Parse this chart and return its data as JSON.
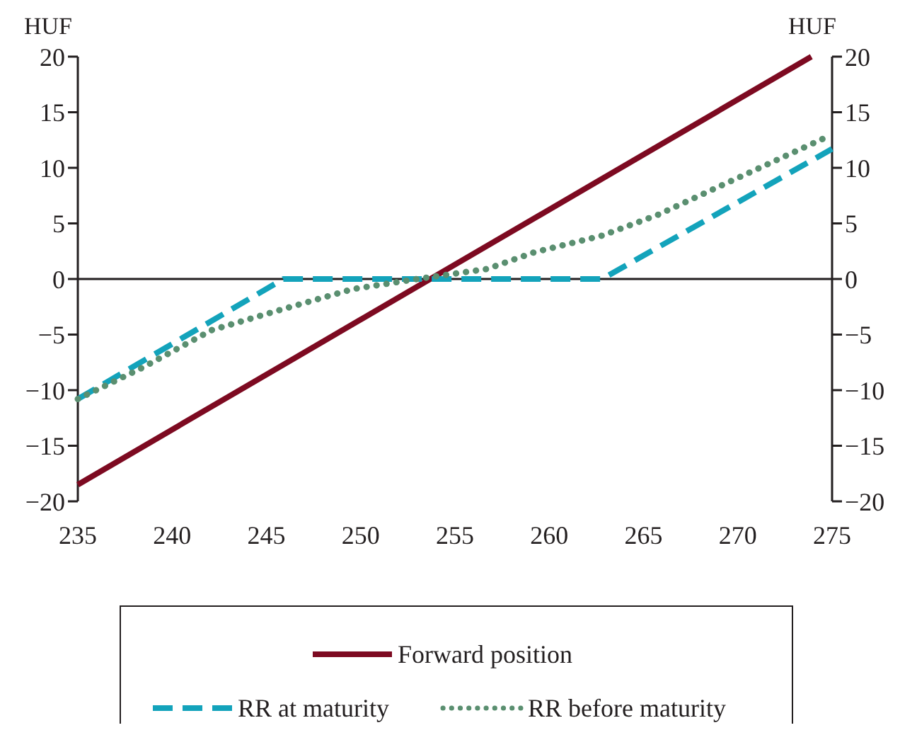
{
  "chart_data": {
    "type": "line",
    "ylabel": "HUF",
    "y2label": "HUF",
    "xlim": [
      235,
      275
    ],
    "xticks": [
      235,
      240,
      245,
      250,
      255,
      260,
      265,
      270,
      275
    ],
    "ylim": [
      -20,
      20
    ],
    "yticks": [
      {
        "value": -20,
        "label": "−20"
      },
      {
        "value": -15,
        "label": "−15"
      },
      {
        "value": -10,
        "label": "−10"
      },
      {
        "value": -5,
        "label": "−5"
      },
      0,
      5,
      10,
      15,
      20
    ],
    "y2lim": [
      -20,
      20
    ],
    "y2ticks": [
      {
        "value": -20,
        "label": "−20"
      },
      {
        "value": -15,
        "label": "−15"
      },
      {
        "value": -10,
        "label": "−10"
      },
      {
        "value": -5,
        "label": "−5"
      },
      0,
      5,
      10,
      15,
      20
    ],
    "ref_lines": [
      {
        "axis": "y",
        "value": 0,
        "color": "#231f20"
      }
    ],
    "legend": "bottom",
    "series": [
      {
        "name": "Forward position",
        "color": "#7d0a21",
        "line_style": "solid",
        "x": [
          235,
          273.9
        ],
        "values": [
          -18.5,
          20
        ]
      },
      {
        "name": "RR at maturity",
        "color": "#13a3bb",
        "line_style": "dashed",
        "x": [
          235,
          245.9,
          262.8,
          275
        ],
        "values": [
          -10.8,
          0,
          0,
          11.7
        ]
      },
      {
        "name": "RR before maturity",
        "color": "#5a8f70",
        "line_style": "dotted",
        "x": [
          235,
          238.4,
          242.1,
          245.9,
          249.6,
          253,
          256.7,
          259.2,
          262.8,
          265.8,
          269.5,
          274.5
        ],
        "values": [
          -10.8,
          -8.0,
          -4.6,
          -2.7,
          -0.9,
          0,
          0.9,
          2.4,
          3.9,
          5.8,
          8.7,
          12.6
        ]
      }
    ]
  }
}
